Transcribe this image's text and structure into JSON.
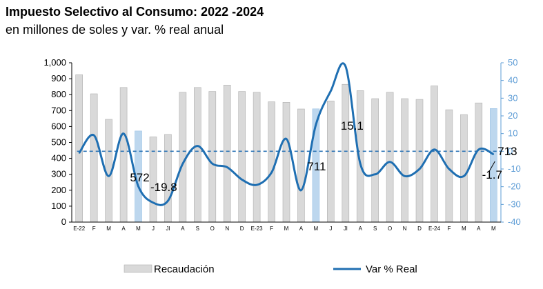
{
  "header": {
    "title": "Impuesto Selectivo al Consumo: 2022 -2024",
    "subtitle": "en millones de soles y var. % real anual"
  },
  "chart_data": {
    "type": "bar",
    "categories": [
      "E-22",
      "F",
      "M",
      "A",
      "M",
      "J",
      "Jl",
      "A",
      "S",
      "O",
      "N",
      "D",
      "E-23",
      "F",
      "M",
      "A",
      "M",
      "J",
      "Jl",
      "A",
      "S",
      "O",
      "N",
      "D",
      "E-24",
      "F",
      "M",
      "A",
      "M"
    ],
    "series": [
      {
        "name": "Recaudación",
        "type": "bar",
        "axis": "left",
        "values": [
          925,
          805,
          645,
          845,
          572,
          535,
          550,
          815,
          845,
          820,
          860,
          820,
          815,
          755,
          752,
          710,
          711,
          760,
          865,
          825,
          775,
          815,
          775,
          770,
          855,
          705,
          675,
          748,
          713
        ],
        "highlight_indices": [
          4,
          16,
          28
        ],
        "color": "#d9d9d9",
        "highlight_color": "#bdd7ee"
      },
      {
        "name": "Var % Real",
        "type": "line",
        "axis": "right",
        "values": [
          -1,
          9,
          -14,
          10,
          -19.8,
          -29,
          -28,
          -7,
          3,
          -7,
          -9,
          -16,
          -19,
          -12,
          7,
          -22,
          15.1,
          34,
          48,
          -7,
          -13,
          -6,
          -14,
          -10,
          1,
          -10,
          -14,
          1,
          -1.7
        ],
        "color": "#1f6fb2"
      }
    ],
    "reference_line": {
      "axis": "right",
      "value": 0,
      "style": "dashed",
      "color": "#2e75b6"
    },
    "y_left": {
      "ylim": [
        0,
        1000
      ],
      "ticks": [
        0,
        100,
        200,
        300,
        400,
        500,
        600,
        700,
        800,
        900,
        1000
      ],
      "tick_labels": [
        "0",
        "100",
        "200",
        "300",
        "400",
        "500",
        "600",
        "700",
        "800",
        "900",
        "1,000"
      ]
    },
    "y_right": {
      "ylim": [
        -40,
        50
      ],
      "ticks": [
        -40,
        -30,
        -20,
        -10,
        0,
        10,
        20,
        30,
        40,
        50
      ],
      "tick_labels": [
        "-40",
        "-30",
        "-20",
        "-10",
        "0",
        "10",
        "20",
        "30",
        "40",
        "50"
      ],
      "color": "#5b9bd5"
    },
    "annotations": [
      {
        "text": "572",
        "index": 4,
        "series": "Recaudación"
      },
      {
        "text": "-19.8",
        "index": 4,
        "series": "Var % Real"
      },
      {
        "text": "711",
        "index": 16,
        "series": "Recaudación"
      },
      {
        "text": "15.1",
        "index": 16,
        "series": "Var % Real"
      },
      {
        "text": "713",
        "index": 28,
        "series": "Recaudación"
      },
      {
        "text": "-1.7",
        "index": 28,
        "series": "Var % Real"
      }
    ],
    "legend": {
      "position": "bottom",
      "items": [
        "Recaudación",
        "Var % Real"
      ]
    },
    "grid": false
  }
}
